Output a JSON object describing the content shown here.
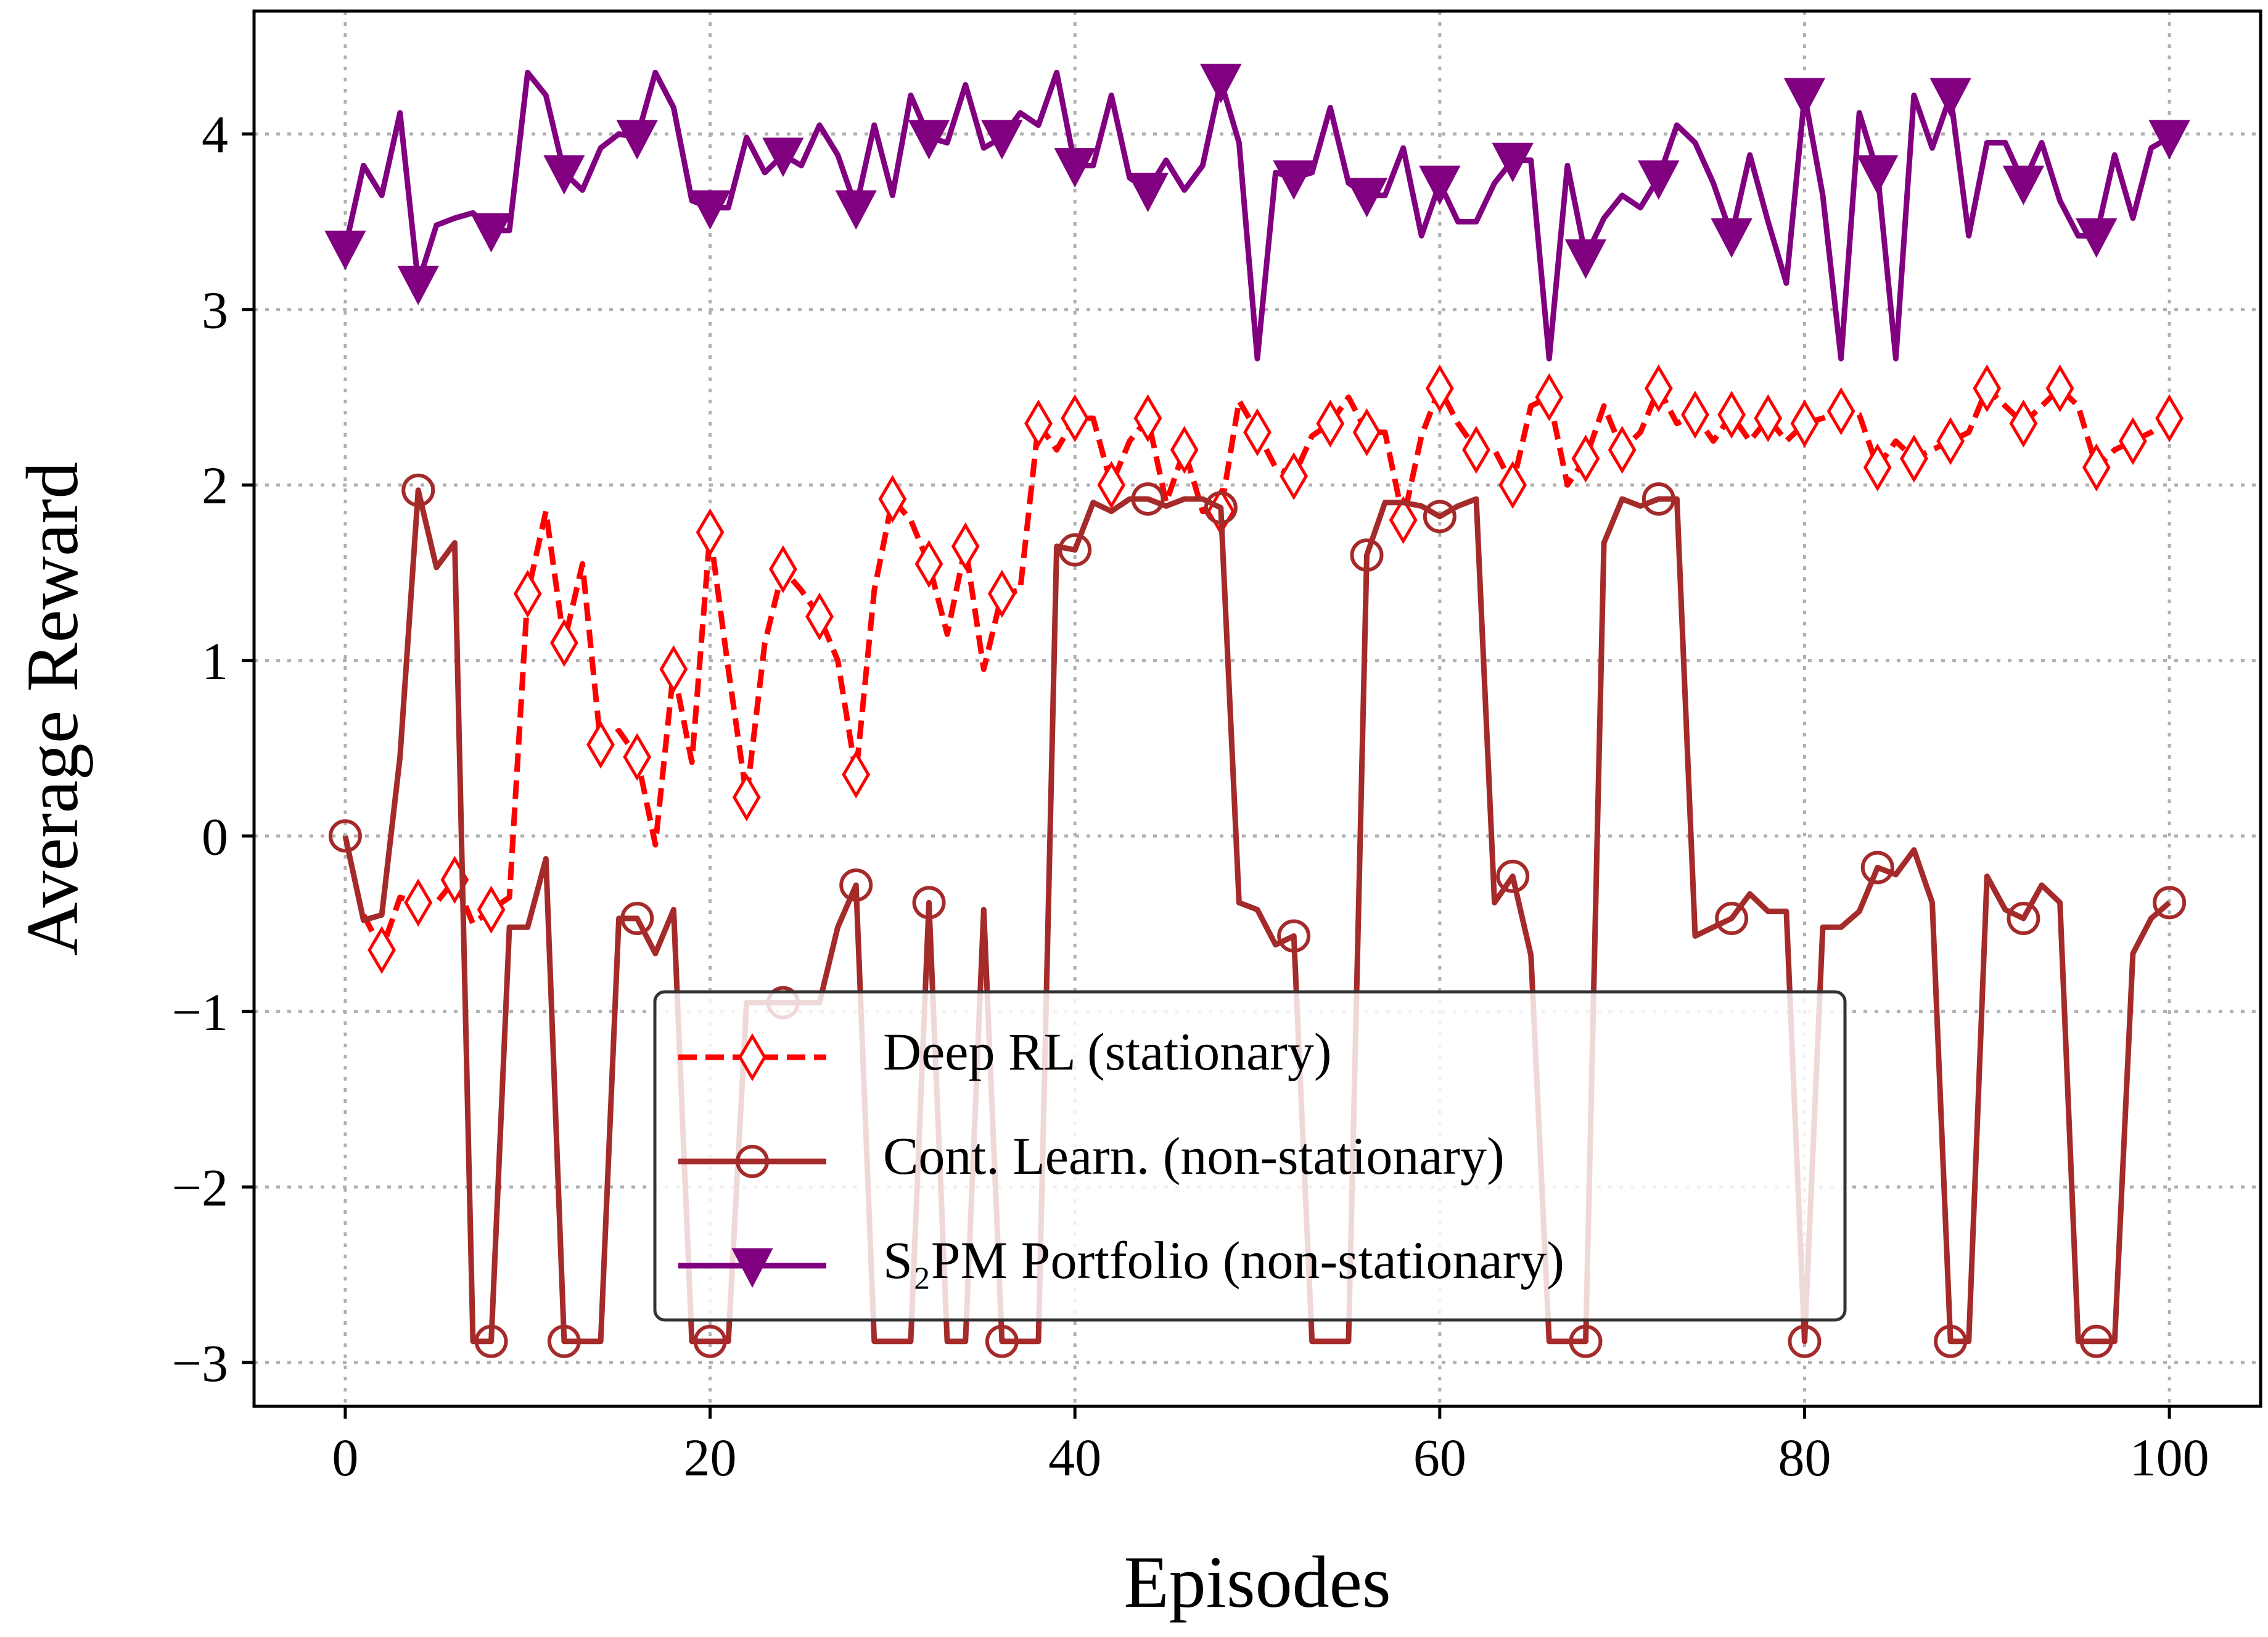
{
  "chart_data": {
    "type": "line",
    "xlabel": "Episodes",
    "ylabel": "Average Reward",
    "xlim": [
      -5,
      105
    ],
    "ylim": [
      -3.25,
      4.7
    ],
    "xticks": [
      0,
      20,
      40,
      60,
      80,
      100
    ],
    "yticks": [
      -3,
      -2,
      -1,
      0,
      1,
      2,
      3,
      4
    ],
    "xtick_labels": [
      "0",
      "20",
      "40",
      "60",
      "80",
      "100"
    ],
    "ytick_labels": [
      "−3",
      "−2",
      "−1",
      "0",
      "1",
      "2",
      "3",
      "4"
    ],
    "grid": true,
    "legend_position": "lower-center",
    "series": [
      {
        "name": "Deep RL (stationary)",
        "color": "#ff0000",
        "line_style": "dashed",
        "marker": "thin-diamond",
        "marker_every": 2,
        "x": [
          0,
          1,
          2,
          3,
          4,
          5,
          6,
          7,
          8,
          9,
          10,
          11,
          12,
          13,
          14,
          15,
          16,
          17,
          18,
          19,
          20,
          21,
          22,
          23,
          24,
          25,
          26,
          27,
          28,
          29,
          30,
          31,
          32,
          33,
          34,
          35,
          36,
          37,
          38,
          39,
          40,
          41,
          42,
          43,
          44,
          45,
          46,
          47,
          48,
          49,
          50,
          51,
          52,
          53,
          54,
          55,
          56,
          57,
          58,
          59,
          60,
          61,
          62,
          63,
          64,
          65,
          66,
          67,
          68,
          69,
          70,
          71,
          72,
          73,
          74,
          75,
          76,
          77,
          78,
          79,
          80,
          81,
          82,
          83,
          84,
          85,
          86,
          87,
          88,
          89,
          90,
          91,
          92,
          93,
          94,
          95,
          96,
          97,
          98,
          99,
          100
        ],
        "values": [
          null,
          -0.45,
          -0.65,
          -0.35,
          -0.38,
          -0.38,
          -0.25,
          -0.5,
          -0.42,
          -0.35,
          1.38,
          1.85,
          1.1,
          1.55,
          0.52,
          0.6,
          0.45,
          -0.05,
          0.95,
          0.42,
          1.73,
          0.95,
          0.22,
          1.1,
          1.52,
          1.4,
          1.25,
          1.0,
          0.35,
          1.4,
          1.92,
          1.8,
          1.55,
          1.15,
          1.65,
          0.95,
          1.38,
          1.4,
          2.35,
          2.2,
          2.38,
          2.38,
          2.0,
          2.25,
          2.38,
          1.9,
          2.2,
          1.85,
          1.85,
          2.48,
          2.3,
          2.1,
          2.05,
          2.28,
          2.35,
          2.5,
          2.3,
          2.3,
          1.8,
          2.28,
          2.55,
          2.35,
          2.2,
          2.2,
          2.0,
          2.45,
          2.5,
          2.0,
          2.15,
          2.45,
          2.2,
          2.3,
          2.55,
          2.35,
          2.4,
          2.25,
          2.4,
          2.25,
          2.38,
          2.25,
          2.35,
          2.38,
          2.42,
          2.4,
          2.1,
          2.25,
          2.15,
          2.2,
          2.25,
          2.3,
          2.55,
          2.45,
          2.35,
          2.45,
          2.55,
          2.45,
          2.1,
          2.2,
          2.25,
          2.3,
          2.38
        ]
      },
      {
        "name": "Cont. Learn. (non-stationary)",
        "color": "#a52a2a",
        "line_style": "solid",
        "marker": "circle",
        "marker_every": 4,
        "x": [
          0,
          1,
          2,
          3,
          4,
          5,
          6,
          7,
          8,
          9,
          10,
          11,
          12,
          13,
          14,
          15,
          16,
          17,
          18,
          19,
          20,
          21,
          22,
          23,
          24,
          25,
          26,
          27,
          28,
          29,
          30,
          31,
          32,
          33,
          34,
          35,
          36,
          37,
          38,
          39,
          40,
          41,
          42,
          43,
          44,
          45,
          46,
          47,
          48,
          49,
          50,
          51,
          52,
          53,
          54,
          55,
          56,
          57,
          58,
          59,
          60,
          61,
          62,
          63,
          64,
          65,
          66,
          67,
          68,
          69,
          70,
          71,
          72,
          73,
          74,
          75,
          76,
          77,
          78,
          79,
          80,
          81,
          82,
          83,
          84,
          85,
          86,
          87,
          88,
          89,
          90,
          91,
          92,
          93,
          94,
          95,
          96,
          97,
          98,
          99,
          100
        ],
        "values": [
          0.0,
          -0.48,
          -0.45,
          0.45,
          1.97,
          1.53,
          1.67,
          -2.88,
          -2.88,
          -0.52,
          -0.52,
          -0.13,
          -2.88,
          -2.88,
          -2.88,
          -0.47,
          -0.47,
          -0.67,
          -0.42,
          -2.88,
          -2.88,
          -2.88,
          -0.95,
          -0.95,
          -0.95,
          -0.95,
          -0.95,
          -0.52,
          -0.28,
          -2.88,
          -2.88,
          -2.88,
          -0.38,
          -2.88,
          -2.88,
          -0.42,
          -2.88,
          -2.88,
          -2.88,
          1.65,
          1.63,
          1.9,
          1.85,
          1.92,
          1.92,
          1.88,
          1.92,
          1.92,
          1.87,
          -0.38,
          -0.42,
          -0.62,
          -0.57,
          -2.88,
          -2.88,
          -2.88,
          1.6,
          1.9,
          1.9,
          1.88,
          1.82,
          1.88,
          1.92,
          -0.38,
          -0.23,
          -0.68,
          -2.88,
          -2.88,
          -2.88,
          1.67,
          1.92,
          1.88,
          1.92,
          1.92,
          -0.57,
          -0.52,
          -0.47,
          -0.33,
          -0.43,
          -0.43,
          -2.88,
          -0.52,
          -0.52,
          -0.43,
          -0.18,
          -0.22,
          -0.08,
          -0.38,
          -2.88,
          -2.88,
          -0.23,
          -0.42,
          -0.47,
          -0.28,
          -0.38,
          -2.88,
          -2.88,
          -2.88,
          -0.67,
          -0.47,
          -0.38
        ]
      },
      {
        "name": "S₂PM Portfolio (non-stationary)",
        "color": "#800080",
        "line_style": "solid",
        "marker": "triangle-down",
        "marker_every": 4,
        "x": [
          0,
          1,
          2,
          3,
          4,
          5,
          6,
          7,
          8,
          9,
          10,
          11,
          12,
          13,
          14,
          15,
          16,
          17,
          18,
          19,
          20,
          21,
          22,
          23,
          24,
          25,
          26,
          27,
          28,
          29,
          30,
          31,
          32,
          33,
          34,
          35,
          36,
          37,
          38,
          39,
          40,
          41,
          42,
          43,
          44,
          45,
          46,
          47,
          48,
          49,
          50,
          51,
          52,
          53,
          54,
          55,
          56,
          57,
          58,
          59,
          60,
          61,
          62,
          63,
          64,
          65,
          66,
          67,
          68,
          69,
          70,
          71,
          72,
          73,
          74,
          75,
          76,
          77,
          78,
          79,
          80,
          81,
          82,
          83,
          84,
          85,
          86,
          87,
          88,
          89,
          90,
          91,
          92,
          93,
          94,
          95,
          96,
          97,
          98,
          99,
          100
        ],
        "values": [
          3.35,
          3.82,
          3.65,
          4.12,
          3.15,
          3.48,
          3.52,
          3.55,
          3.45,
          3.45,
          4.35,
          4.22,
          3.78,
          3.68,
          3.92,
          4.0,
          3.98,
          4.35,
          4.15,
          3.62,
          3.58,
          3.58,
          3.98,
          3.78,
          3.88,
          3.82,
          4.05,
          3.88,
          3.58,
          4.05,
          3.65,
          4.22,
          3.98,
          3.95,
          4.28,
          3.92,
          3.98,
          4.12,
          4.05,
          4.35,
          3.82,
          3.82,
          4.22,
          3.75,
          3.68,
          3.85,
          3.68,
          3.82,
          4.3,
          3.95,
          2.72,
          3.78,
          3.75,
          3.78,
          4.15,
          3.72,
          3.65,
          3.65,
          3.92,
          3.42,
          3.72,
          3.5,
          3.5,
          3.72,
          3.85,
          3.85,
          2.72,
          3.82,
          3.3,
          3.52,
          3.65,
          3.58,
          3.75,
          4.05,
          3.95,
          3.72,
          3.42,
          3.88,
          3.5,
          3.15,
          4.22,
          3.65,
          2.72,
          4.12,
          3.78,
          2.72,
          4.22,
          3.92,
          4.22,
          3.42,
          3.95,
          3.95,
          3.72,
          3.95,
          3.62,
          3.42,
          3.42,
          3.88,
          3.52,
          3.92,
          3.98
        ]
      }
    ]
  }
}
